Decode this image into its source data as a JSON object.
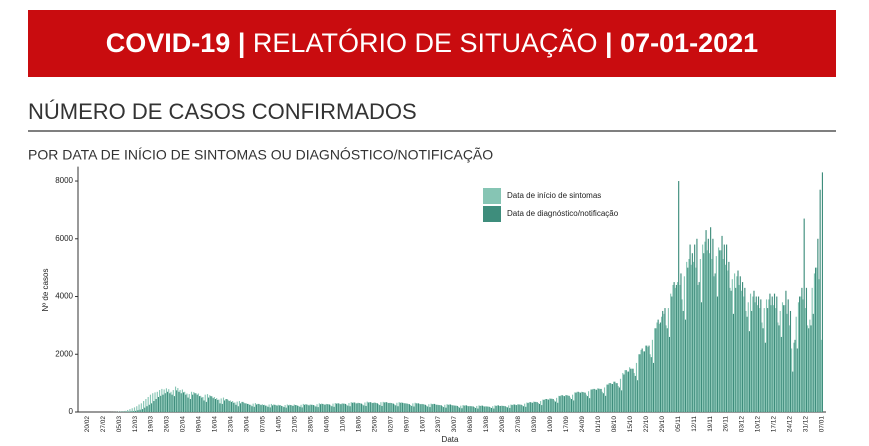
{
  "header": {
    "title": [
      "COVID-19",
      "|",
      "RELATÓRIO DE SITUAÇÃO",
      "|",
      "07-01-2021"
    ]
  },
  "section_title": "NÚMERO DE CASOS CONFIRMADOS",
  "chart_data": {
    "type": "bar",
    "title": "POR DATA DE INÍCIO DE SINTOMAS OU DIAGNÓSTICO/NOTIFICAÇÃO",
    "x_label": "Data",
    "y_label": "Nº de casos",
    "ylim": [
      0,
      8500
    ],
    "yticks": [
      0,
      2000,
      4000,
      6000,
      8000
    ],
    "legend_position": "top-right",
    "categories": [
      "20/02",
      null,
      null,
      null,
      null,
      null,
      null,
      "27/02",
      null,
      null,
      null,
      null,
      null,
      null,
      "05/03",
      null,
      null,
      null,
      null,
      null,
      null,
      "12/03",
      null,
      null,
      null,
      null,
      null,
      null,
      "19/03",
      null,
      null,
      null,
      null,
      null,
      null,
      "26/03",
      null,
      null,
      null,
      null,
      null,
      null,
      "02/04",
      null,
      null,
      null,
      null,
      null,
      null,
      "09/04",
      null,
      null,
      null,
      null,
      null,
      null,
      "16/04",
      null,
      null,
      null,
      null,
      null,
      null,
      "23/04",
      null,
      null,
      null,
      null,
      null,
      null,
      "30/04",
      null,
      null,
      null,
      null,
      null,
      null,
      "07/05",
      null,
      null,
      null,
      null,
      null,
      null,
      "14/05",
      null,
      null,
      null,
      null,
      null,
      null,
      "21/05",
      null,
      null,
      null,
      null,
      null,
      null,
      "28/05",
      null,
      null,
      null,
      null,
      null,
      null,
      "04/06",
      null,
      null,
      null,
      null,
      null,
      null,
      "11/06",
      null,
      null,
      null,
      null,
      null,
      null,
      "18/06",
      null,
      null,
      null,
      null,
      null,
      null,
      "25/06",
      null,
      null,
      null,
      null,
      null,
      null,
      "02/07",
      null,
      null,
      null,
      null,
      null,
      null,
      "09/07",
      null,
      null,
      null,
      null,
      null,
      null,
      "16/07",
      null,
      null,
      null,
      null,
      null,
      null,
      "23/07",
      null,
      null,
      null,
      null,
      null,
      null,
      "30/07",
      null,
      null,
      null,
      null,
      null,
      null,
      "06/08",
      null,
      null,
      null,
      null,
      null,
      null,
      "13/08",
      null,
      null,
      null,
      null,
      null,
      null,
      "20/08",
      null,
      null,
      null,
      null,
      null,
      null,
      "27/08",
      null,
      null,
      null,
      null,
      null,
      null,
      "03/09",
      null,
      null,
      null,
      null,
      null,
      null,
      "10/09",
      null,
      null,
      null,
      null,
      null,
      null,
      "17/09",
      null,
      null,
      null,
      null,
      null,
      null,
      "24/09",
      null,
      null,
      null,
      null,
      null,
      null,
      "01/10",
      null,
      null,
      null,
      null,
      null,
      null,
      "08/10",
      null,
      null,
      null,
      null,
      null,
      null,
      "15/10",
      null,
      null,
      null,
      null,
      null,
      null,
      "22/10",
      null,
      null,
      null,
      null,
      null,
      null,
      "29/10",
      null,
      null,
      null,
      null,
      null,
      null,
      "05/11",
      null,
      null,
      null,
      null,
      null,
      null,
      "12/11",
      null,
      null,
      null,
      null,
      null,
      null,
      "19/11",
      null,
      null,
      null,
      null,
      null,
      null,
      "26/11",
      null,
      null,
      null,
      null,
      null,
      null,
      "03/12",
      null,
      null,
      null,
      null,
      null,
      null,
      "10/12",
      null,
      null,
      null,
      null,
      null,
      null,
      "17/12",
      null,
      null,
      null,
      null,
      null,
      null,
      "24/12",
      null,
      null,
      null,
      null,
      null,
      null,
      "31/12",
      null,
      null,
      null,
      null,
      null,
      null,
      "07/01"
    ],
    "series": [
      {
        "name": "Data de início de sintomas",
        "color": "#86c5b4",
        "values": [
          0,
          0,
          0,
          0,
          0,
          0,
          0,
          0,
          0,
          0,
          0,
          2,
          5,
          8,
          15,
          25,
          30,
          40,
          70,
          100,
          130,
          160,
          200,
          260,
          300,
          380,
          450,
          520,
          600,
          650,
          680,
          700,
          760,
          800,
          780,
          820,
          790,
          700,
          760,
          880,
          830,
          760,
          780,
          700,
          640,
          620,
          700,
          690,
          650,
          640,
          560,
          520,
          600,
          620,
          580,
          540,
          520,
          480,
          430,
          470,
          500,
          450,
          420,
          400,
          380,
          330,
          360,
          380,
          350,
          320,
          300,
          280,
          250,
          290,
          310,
          280,
          260,
          270,
          250,
          220,
          260,
          280,
          260,
          240,
          250,
          240,
          200,
          240,
          260,
          250,
          230,
          260,
          240,
          210,
          250,
          280,
          270,
          250,
          260,
          250,
          220,
          270,
          300,
          290,
          270,
          280,
          270,
          230,
          290,
          310,
          300,
          280,
          300,
          290,
          250,
          310,
          340,
          330,
          300,
          320,
          300,
          260,
          330,
          360,
          340,
          320,
          330,
          310,
          270,
          340,
          350,
          340,
          320,
          320,
          300,
          260,
          320,
          340,
          330,
          310,
          300,
          280,
          240,
          300,
          320,
          300,
          280,
          280,
          260,
          220,
          270,
          290,
          280,
          260,
          250,
          240,
          200,
          250,
          270,
          260,
          240,
          230,
          220,
          180,
          220,
          240,
          230,
          210,
          210,
          200,
          170,
          210,
          230,
          220,
          200,
          200,
          190,
          160,
          200,
          230,
          230,
          210,
          220,
          210,
          180,
          230,
          260,
          260,
          250,
          270,
          260,
          230,
          290,
          330,
          340,
          330,
          360,
          350,
          310,
          380,
          430,
          450,
          440,
          470,
          460,
          400,
          490,
          560,
          580,
          560,
          590,
          570,
          500,
          600,
          680,
          700,
          680,
          700,
          680,
          600,
          720,
          780,
          800,
          780,
          820,
          800,
          700,
          850,
          950,
          1000,
          980,
          1050,
          1000,
          900,
          1150,
          1350,
          1450,
          1400,
          1550,
          1500,
          1350,
          1700,
          2000,
          2150,
          2100,
          2300,
          2250,
          2000,
          2500,
          2900,
          3100,
          3050,
          3300,
          3400,
          3000,
          3600,
          4100,
          4400,
          4300,
          4500,
          4400,
          3900,
          4700,
          5200,
          5300,
          5100,
          5200,
          5000,
          4400,
          5300,
          5800,
          5900,
          5600,
          5500,
          5300,
          4700,
          5400,
          5700,
          5600,
          5300,
          5100,
          4900,
          4300,
          4600,
          4800,
          4700,
          4400,
          4200,
          4000,
          3500,
          3800,
          4100,
          4000,
          3800,
          3700,
          3600,
          3100,
          3600,
          3900,
          3900,
          3700,
          3700,
          3600,
          3100,
          3500,
          3800,
          3700,
          3400,
          3000,
          2200,
          2400,
          3300,
          3800,
          4000,
          3900,
          3600,
          3000,
          3200,
          4300,
          4800,
          5000,
          4600,
          2500
        ]
      },
      {
        "name": "Data de diagnóstico/notificação",
        "color": "#3e8d7c",
        "values": [
          0,
          0,
          0,
          0,
          0,
          0,
          0,
          0,
          0,
          0,
          0,
          0,
          0,
          0,
          2,
          3,
          5,
          10,
          15,
          25,
          30,
          40,
          60,
          80,
          100,
          150,
          200,
          250,
          300,
          380,
          450,
          520,
          560,
          600,
          650,
          700,
          650,
          600,
          550,
          750,
          700,
          650,
          680,
          600,
          500,
          450,
          600,
          650,
          600,
          550,
          500,
          400,
          350,
          500,
          550,
          480,
          450,
          420,
          300,
          280,
          400,
          450,
          380,
          350,
          320,
          250,
          200,
          300,
          350,
          300,
          280,
          250,
          200,
          180,
          260,
          280,
          240,
          240,
          220,
          180,
          160,
          230,
          250,
          220,
          230,
          210,
          170,
          150,
          230,
          240,
          210,
          240,
          220,
          180,
          160,
          250,
          260,
          230,
          250,
          240,
          190,
          170,
          270,
          280,
          250,
          270,
          260,
          200,
          180,
          290,
          300,
          270,
          290,
          280,
          220,
          200,
          320,
          330,
          300,
          310,
          290,
          230,
          210,
          330,
          340,
          310,
          320,
          300,
          240,
          210,
          330,
          340,
          310,
          310,
          290,
          230,
          200,
          320,
          320,
          300,
          290,
          270,
          210,
          190,
          300,
          300,
          270,
          270,
          250,
          190,
          170,
          270,
          280,
          250,
          240,
          230,
          170,
          150,
          250,
          260,
          230,
          220,
          210,
          150,
          130,
          220,
          230,
          200,
          200,
          190,
          140,
          120,
          210,
          220,
          190,
          190,
          180,
          140,
          120,
          210,
          230,
          210,
          210,
          200,
          160,
          140,
          240,
          260,
          240,
          260,
          250,
          200,
          180,
          310,
          340,
          320,
          350,
          340,
          280,
          240,
          420,
          450,
          430,
          460,
          450,
          360,
          320,
          550,
          580,
          550,
          580,
          560,
          450,
          400,
          670,
          700,
          670,
          690,
          670,
          550,
          480,
          780,
          800,
          770,
          810,
          800,
          650,
          560,
          950,
          1000,
          970,
          1050,
          1000,
          850,
          750,
          1300,
          1450,
          1400,
          1500,
          1500,
          1250,
          1100,
          2000,
          2200,
          2100,
          2300,
          2300,
          1900,
          1700,
          2900,
          3200,
          3100,
          3500,
          3600,
          2900,
          2600,
          4000,
          4500,
          4400,
          8000,
          4800,
          3500,
          3200,
          5000,
          5800,
          5500,
          5800,
          6000,
          4500,
          3800,
          5500,
          6300,
          6000,
          6400,
          6000,
          4800,
          4000,
          5600,
          6100,
          5800,
          5800,
          5200,
          4200,
          3400,
          4300,
          4900,
          4700,
          4500,
          4300,
          3300,
          2800,
          3500,
          4200,
          4000,
          4000,
          3900,
          2900,
          2400,
          3600,
          4100,
          4000,
          4100,
          4000,
          3000,
          2600,
          3700,
          4200,
          3900,
          3500,
          1400,
          2500,
          2200,
          4000,
          4300,
          6700,
          4300,
          2900,
          3000,
          3400,
          5000,
          6000,
          7700,
          8300
        ]
      }
    ]
  }
}
